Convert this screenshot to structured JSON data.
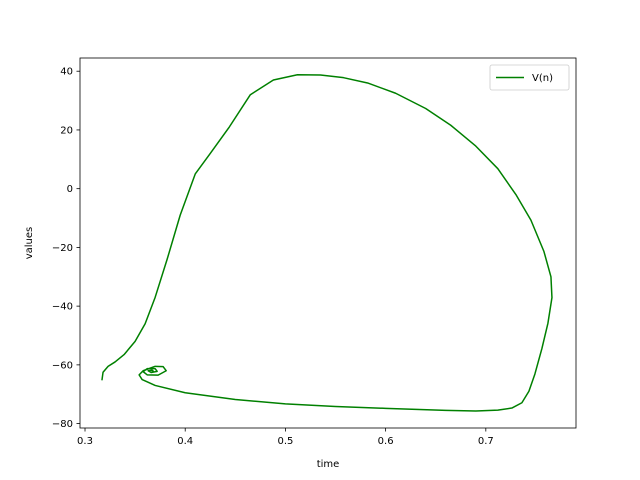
{
  "chart_data": {
    "type": "line",
    "title": "",
    "xlabel": "time",
    "ylabel": "values",
    "xlim": [
      0.295,
      0.79
    ],
    "ylim": [
      -81.5,
      44.5
    ],
    "xticks": [
      0.3,
      0.4,
      0.5,
      0.6,
      0.7
    ],
    "xtick_labels": [
      "0.3",
      "0.4",
      "0.5",
      "0.6",
      "0.7"
    ],
    "yticks": [
      -80,
      -60,
      -40,
      -20,
      0,
      20,
      40
    ],
    "ytick_labels": [
      "−80",
      "−60",
      "−40",
      "−20",
      "0",
      "20",
      "40"
    ],
    "grid": false,
    "legend_position": "top-right",
    "series": [
      {
        "name": "V(n)",
        "color": "#008000",
        "points": [
          [
            0.317,
            -65
          ],
          [
            0.318,
            -62.5
          ],
          [
            0.323,
            -60.5
          ],
          [
            0.33,
            -59
          ],
          [
            0.339,
            -56.5
          ],
          [
            0.35,
            -52
          ],
          [
            0.36,
            -46
          ],
          [
            0.37,
            -37
          ],
          [
            0.382,
            -24
          ],
          [
            0.395,
            -9
          ],
          [
            0.41,
            5
          ],
          [
            0.425,
            12
          ],
          [
            0.444,
            21
          ],
          [
            0.465,
            32
          ],
          [
            0.488,
            37
          ],
          [
            0.512,
            38.8
          ],
          [
            0.535,
            38.7
          ],
          [
            0.558,
            37.8
          ],
          [
            0.582,
            36
          ],
          [
            0.61,
            32.5
          ],
          [
            0.64,
            27.3
          ],
          [
            0.665,
            21.6
          ],
          [
            0.69,
            14.5
          ],
          [
            0.712,
            6.8
          ],
          [
            0.73,
            -2
          ],
          [
            0.745,
            -10.7
          ],
          [
            0.758,
            -21.4
          ],
          [
            0.765,
            -30
          ],
          [
            0.766,
            -37.1
          ],
          [
            0.762,
            -45.8
          ],
          [
            0.756,
            -54.4
          ],
          [
            0.749,
            -63.1
          ],
          [
            0.743,
            -69
          ],
          [
            0.736,
            -72.9
          ],
          [
            0.726,
            -74.7
          ],
          [
            0.712,
            -75.4
          ],
          [
            0.69,
            -75.7
          ],
          [
            0.66,
            -75.5
          ],
          [
            0.6,
            -74.8
          ],
          [
            0.55,
            -74.2
          ],
          [
            0.5,
            -73.3
          ],
          [
            0.45,
            -71.8
          ],
          [
            0.4,
            -69.5
          ],
          [
            0.37,
            -67
          ],
          [
            0.357,
            -65
          ],
          [
            0.354,
            -63.4
          ],
          [
            0.358,
            -62
          ],
          [
            0.37,
            -60.5
          ],
          [
            0.378,
            -60.6
          ],
          [
            0.381,
            -62
          ],
          [
            0.373,
            -63.5
          ],
          [
            0.362,
            -63.4
          ],
          [
            0.358,
            -62.3
          ],
          [
            0.362,
            -61.3
          ],
          [
            0.37,
            -61.3
          ],
          [
            0.372,
            -62.2
          ],
          [
            0.366,
            -62.6
          ],
          [
            0.363,
            -62
          ],
          [
            0.367,
            -61.8
          ],
          [
            0.368,
            -62.1
          ],
          [
            0.367,
            -62
          ]
        ]
      }
    ]
  }
}
